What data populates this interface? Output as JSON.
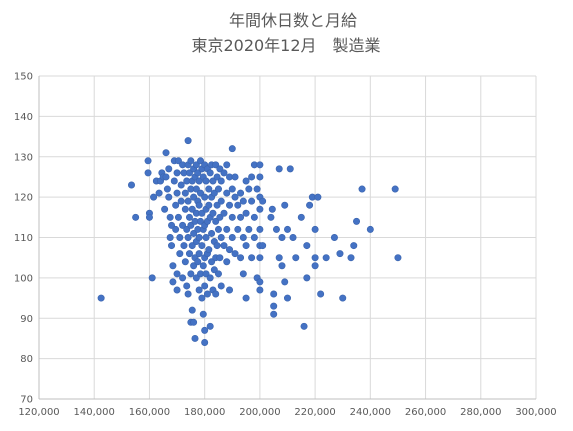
{
  "chart_data": {
    "type": "scatter",
    "title": [
      "年間休日数と月給",
      "東京2020年12月　製造業"
    ],
    "xlabel": "",
    "ylabel": "",
    "xlim": [
      120000,
      300000
    ],
    "ylim": [
      70,
      150
    ],
    "x_ticks": [
      120000,
      140000,
      160000,
      180000,
      200000,
      220000,
      240000,
      260000,
      280000,
      300000
    ],
    "x_tick_labels": [
      "120,000",
      "140,000",
      "160,000",
      "180,000",
      "200,000",
      "220,000",
      "240,000",
      "260,000",
      "280,000",
      "300,000"
    ],
    "y_ticks": [
      70,
      80,
      90,
      100,
      110,
      120,
      130,
      140,
      150
    ],
    "y_tick_labels": [
      "70",
      "80",
      "90",
      "100",
      "110",
      "120",
      "130",
      "140",
      "150"
    ],
    "grid": true,
    "legend": "none",
    "marker_color": "#4472c4",
    "series": [
      {
        "points": [
          [
            142500,
            95
          ],
          [
            153500,
            123
          ],
          [
            155000,
            115
          ],
          [
            159500,
            129
          ],
          [
            159500,
            126
          ],
          [
            160000,
            116
          ],
          [
            160000,
            115
          ],
          [
            161000,
            100
          ],
          [
            161500,
            120
          ],
          [
            162500,
            124
          ],
          [
            163500,
            121
          ],
          [
            164000,
            124
          ],
          [
            164500,
            126
          ],
          [
            165000,
            125
          ],
          [
            165500,
            117
          ],
          [
            166000,
            131
          ],
          [
            166000,
            125
          ],
          [
            166500,
            122
          ],
          [
            167000,
            127
          ],
          [
            167000,
            120
          ],
          [
            167500,
            115
          ],
          [
            167500,
            110
          ],
          [
            168000,
            113
          ],
          [
            168000,
            108
          ],
          [
            168500,
            103
          ],
          [
            168500,
            99
          ],
          [
            169000,
            129
          ],
          [
            169000,
            124
          ],
          [
            169500,
            118
          ],
          [
            169500,
            112
          ],
          [
            170000,
            126
          ],
          [
            170000,
            121
          ],
          [
            170000,
            101
          ],
          [
            170000,
            97
          ],
          [
            170500,
            129
          ],
          [
            170500,
            115
          ],
          [
            171000,
            110
          ],
          [
            171000,
            106
          ],
          [
            171500,
            123
          ],
          [
            171500,
            119
          ],
          [
            172000,
            128
          ],
          [
            172000,
            113
          ],
          [
            172000,
            100
          ],
          [
            172500,
            126
          ],
          [
            172500,
            108
          ],
          [
            173000,
            121
          ],
          [
            173000,
            117
          ],
          [
            173000,
            104
          ],
          [
            173500,
            124
          ],
          [
            173500,
            112
          ],
          [
            173500,
            98
          ],
          [
            174000,
            134
          ],
          [
            174000,
            128
          ],
          [
            174000,
            119
          ],
          [
            174000,
            110
          ],
          [
            174000,
            96
          ],
          [
            174500,
            126
          ],
          [
            174500,
            115
          ],
          [
            174500,
            106
          ],
          [
            175000,
            129
          ],
          [
            175000,
            122
          ],
          [
            175000,
            113
          ],
          [
            175000,
            101
          ],
          [
            175000,
            89
          ],
          [
            175500,
            124
          ],
          [
            175500,
            117
          ],
          [
            175500,
            108
          ],
          [
            175500,
            92
          ],
          [
            176000,
            127
          ],
          [
            176000,
            120
          ],
          [
            176000,
            111
          ],
          [
            176000,
            103
          ],
          [
            176000,
            89
          ],
          [
            176500,
            125
          ],
          [
            176500,
            114
          ],
          [
            176500,
            105
          ],
          [
            176500,
            85
          ],
          [
            177000,
            128
          ],
          [
            177000,
            122
          ],
          [
            177000,
            116
          ],
          [
            177000,
            109
          ],
          [
            177000,
            100
          ],
          [
            177500,
            126
          ],
          [
            177500,
            119
          ],
          [
            177500,
            112
          ],
          [
            177500,
            104
          ],
          [
            178000,
            124
          ],
          [
            178000,
            118
          ],
          [
            178000,
            110
          ],
          [
            178000,
            106
          ],
          [
            178000,
            97
          ],
          [
            178500,
            129
          ],
          [
            178500,
            121
          ],
          [
            178500,
            114
          ],
          [
            178500,
            101
          ],
          [
            179000,
            127
          ],
          [
            179000,
            116
          ],
          [
            179000,
            108
          ],
          [
            179000,
            95
          ],
          [
            179500,
            125
          ],
          [
            179500,
            112
          ],
          [
            179500,
            103
          ],
          [
            179500,
            91
          ],
          [
            180000,
            128
          ],
          [
            180000,
            120
          ],
          [
            180000,
            113
          ],
          [
            180000,
            105
          ],
          [
            180000,
            98
          ],
          [
            180000,
            87
          ],
          [
            180000,
            84
          ],
          [
            180500,
            124
          ],
          [
            180500,
            117
          ],
          [
            180500,
            110
          ],
          [
            180500,
            101
          ],
          [
            181000,
            127
          ],
          [
            181000,
            114
          ],
          [
            181000,
            106
          ],
          [
            181000,
            96
          ],
          [
            181500,
            122
          ],
          [
            181500,
            118
          ],
          [
            181500,
            107
          ],
          [
            182000,
            126
          ],
          [
            182000,
            115
          ],
          [
            182000,
            100
          ],
          [
            182000,
            88
          ],
          [
            182500,
            128
          ],
          [
            182500,
            120
          ],
          [
            182500,
            111
          ],
          [
            182500,
            104
          ],
          [
            183000,
            124
          ],
          [
            183000,
            116
          ],
          [
            183000,
            97
          ],
          [
            183500,
            121
          ],
          [
            183500,
            109
          ],
          [
            183500,
            102
          ],
          [
            184000,
            128
          ],
          [
            184000,
            114
          ],
          [
            184000,
            105
          ],
          [
            184000,
            96
          ],
          [
            184500,
            125
          ],
          [
            184500,
            118
          ],
          [
            184500,
            108
          ],
          [
            185000,
            122
          ],
          [
            185000,
            112
          ],
          [
            185000,
            101
          ],
          [
            185500,
            127
          ],
          [
            185500,
            115
          ],
          [
            185500,
            105
          ],
          [
            186000,
            124
          ],
          [
            186000,
            119
          ],
          [
            186000,
            110
          ],
          [
            186000,
            98
          ],
          [
            187000,
            126
          ],
          [
            187000,
            116
          ],
          [
            187000,
            108
          ],
          [
            188000,
            128
          ],
          [
            188000,
            121
          ],
          [
            188000,
            112
          ],
          [
            188000,
            104
          ],
          [
            189000,
            125
          ],
          [
            189000,
            118
          ],
          [
            189000,
            107
          ],
          [
            189000,
            97
          ],
          [
            190000,
            132
          ],
          [
            190000,
            122
          ],
          [
            190000,
            115
          ],
          [
            190000,
            110
          ],
          [
            191000,
            125
          ],
          [
            191000,
            120
          ],
          [
            191000,
            106
          ],
          [
            192000,
            118
          ],
          [
            192000,
            112
          ],
          [
            193000,
            121
          ],
          [
            193000,
            115
          ],
          [
            193000,
            105
          ],
          [
            194000,
            119
          ],
          [
            194000,
            110
          ],
          [
            194000,
            101
          ],
          [
            195000,
            124
          ],
          [
            195000,
            116
          ],
          [
            195000,
            108
          ],
          [
            195000,
            95
          ],
          [
            196000,
            122
          ],
          [
            196000,
            112
          ],
          [
            197000,
            125
          ],
          [
            197000,
            119
          ],
          [
            197000,
            105
          ],
          [
            198000,
            128
          ],
          [
            198000,
            115
          ],
          [
            198000,
            110
          ],
          [
            199000,
            122
          ],
          [
            199000,
            100
          ],
          [
            200000,
            128
          ],
          [
            200000,
            125
          ],
          [
            200000,
            120
          ],
          [
            200000,
            117
          ],
          [
            200000,
            112
          ],
          [
            200000,
            108
          ],
          [
            200000,
            105
          ],
          [
            200000,
            99
          ],
          [
            200000,
            97
          ],
          [
            201000,
            119
          ],
          [
            201000,
            108
          ],
          [
            204000,
            115
          ],
          [
            204500,
            117
          ],
          [
            205000,
            96
          ],
          [
            205000,
            93
          ],
          [
            205000,
            91
          ],
          [
            206000,
            112
          ],
          [
            207000,
            105
          ],
          [
            207000,
            127
          ],
          [
            208000,
            110
          ],
          [
            208000,
            103
          ],
          [
            209000,
            118
          ],
          [
            209000,
            99
          ],
          [
            210000,
            112
          ],
          [
            210000,
            95
          ],
          [
            211000,
            127
          ],
          [
            212000,
            110
          ],
          [
            213000,
            105
          ],
          [
            215000,
            115
          ],
          [
            216000,
            88
          ],
          [
            217000,
            108
          ],
          [
            217000,
            100
          ],
          [
            218000,
            118
          ],
          [
            219000,
            120
          ],
          [
            220000,
            112
          ],
          [
            220000,
            105
          ],
          [
            220000,
            103
          ],
          [
            221000,
            120
          ],
          [
            222000,
            96
          ],
          [
            224000,
            105
          ],
          [
            227000,
            110
          ],
          [
            229000,
            106
          ],
          [
            230000,
            95
          ],
          [
            233000,
            105
          ],
          [
            234000,
            108
          ],
          [
            235000,
            114
          ],
          [
            237000,
            122
          ],
          [
            240000,
            112
          ],
          [
            249000,
            122
          ],
          [
            250000,
            105
          ]
        ]
      }
    ]
  }
}
